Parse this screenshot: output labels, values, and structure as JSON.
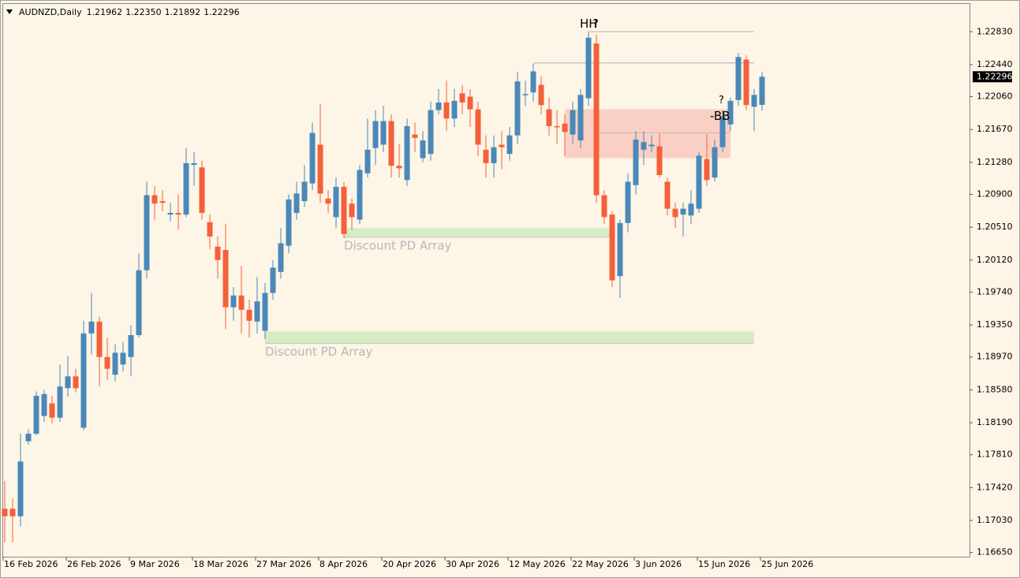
{
  "header": {
    "symbol": "AUDNZD,Daily",
    "ohlc": [
      "1.21962",
      "1.22350",
      "1.21892",
      "1.22296"
    ]
  },
  "chart_data": {
    "type": "candlestick",
    "up_color": "#4a88b8",
    "down_color": "#f4603a",
    "categories": [
      "16 Feb 2026",
      null,
      null,
      null,
      null,
      null,
      null,
      null,
      "26 Feb 2026",
      null,
      null,
      null,
      null,
      null,
      null,
      null,
      "9 Mar 2026",
      null,
      null,
      null,
      null,
      null,
      null,
      null,
      "18 Mar 2026",
      null,
      null,
      null,
      null,
      null,
      null,
      null,
      "27 Mar 2026",
      null,
      null,
      null,
      null,
      null,
      null,
      null,
      "8 Apr 2026",
      null,
      null,
      null,
      null,
      null,
      null,
      null,
      "20 Apr 2026",
      null,
      null,
      null,
      null,
      null,
      null,
      null,
      "30 Apr 2026",
      null,
      null,
      null,
      null,
      null,
      null,
      null,
      "12 May 2026",
      null,
      null,
      null,
      null,
      null,
      null,
      null,
      "22 May 2026",
      null,
      null,
      null,
      null,
      null,
      null,
      null,
      "3 Jun 2026",
      null,
      null,
      null,
      null,
      null,
      null,
      null,
      "15 Jun 2026",
      null,
      null,
      null,
      null,
      null,
      null,
      null,
      "25 Jun 2026"
    ],
    "series": [
      {
        "open": [
          1.1717,
          1.1717,
          1.1708,
          1.1797,
          1.1806,
          1.1827,
          1.1842,
          1.1825,
          1.186,
          1.1874,
          1.1813,
          1.1925,
          1.1939,
          1.1897,
          1.1876,
          1.1888,
          1.1897,
          1.1923,
          1.2,
          1.2089,
          1.2082,
          1.2066,
          1.2068,
          1.2066,
          1.2125,
          1.2122,
          1.2057,
          1.2028,
          1.2024,
          1.1956,
          1.197,
          1.1953,
          1.1939,
          1.1928,
          1.1973,
          1.1998,
          1.2029,
          1.2068,
          1.2082,
          1.2103,
          1.2149,
          1.2085,
          1.2063,
          1.2099,
          1.2079,
          1.206,
          1.2115,
          1.2145,
          1.2149,
          1.2177,
          1.2124,
          1.2107,
          1.2161,
          1.2133,
          1.2138,
          1.219,
          1.2199,
          1.218,
          1.221,
          1.2206,
          1.2191,
          1.2143,
          1.2127,
          1.2149,
          1.2138,
          1.216,
          1.2208,
          1.2211,
          1.222,
          1.2191,
          1.2171,
          1.2174,
          1.2161,
          1.2154,
          1.2204,
          1.2269,
          1.2089,
          1.2066,
          1.1993,
          1.2056,
          1.2101,
          1.2143,
          1.2147,
          1.2147,
          1.2105,
          1.2073,
          1.2066,
          1.2065,
          1.2073,
          1.2132,
          1.211,
          1.2146,
          1.2173,
          1.2202,
          1.225,
          1.2194,
          1.21962
        ],
        "high": [
          1.175,
          1.1729,
          1.1806,
          1.1811,
          1.1856,
          1.1858,
          1.1851,
          1.1888,
          1.1898,
          1.1883,
          1.194,
          1.1973,
          1.1945,
          1.192,
          1.1912,
          1.1915,
          1.1935,
          1.202,
          1.2105,
          1.21,
          1.2095,
          1.208,
          1.209,
          1.2145,
          1.214,
          1.213,
          1.2066,
          1.204,
          1.2055,
          1.198,
          1.2005,
          1.1965,
          1.1992,
          1.1985,
          1.2012,
          1.205,
          1.209,
          1.2105,
          1.2125,
          1.2175,
          1.2197,
          1.2095,
          1.211,
          1.2105,
          1.2085,
          1.2125,
          1.218,
          1.219,
          1.2195,
          1.2185,
          1.215,
          1.218,
          1.2175,
          1.2165,
          1.22,
          1.2215,
          1.2225,
          1.2215,
          1.222,
          1.2215,
          1.22,
          1.216,
          1.216,
          1.2165,
          1.217,
          1.2235,
          1.2225,
          1.2245,
          1.223,
          1.2205,
          1.219,
          1.2185,
          1.22,
          1.2215,
          1.2283,
          1.228,
          1.2095,
          1.207,
          1.206,
          1.2115,
          1.2165,
          1.2165,
          1.216,
          1.2162,
          1.211,
          1.208,
          1.208,
          1.2095,
          1.214,
          1.2162,
          1.2155,
          1.219,
          1.2205,
          1.2258,
          1.2255,
          1.2215,
          1.2235
        ],
        "low": [
          1.1677,
          1.1677,
          1.1696,
          1.1793,
          1.1804,
          1.182,
          1.1818,
          1.182,
          1.185,
          1.1855,
          1.181,
          1.19,
          1.1862,
          1.187,
          1.1868,
          1.188,
          1.1874,
          1.192,
          1.199,
          1.206,
          1.207,
          1.2058,
          1.2048,
          1.2063,
          1.21,
          1.206,
          1.2025,
          1.199,
          1.193,
          1.194,
          1.1925,
          1.192,
          1.1925,
          1.1918,
          1.1965,
          1.199,
          1.202,
          1.206,
          1.2075,
          1.2095,
          1.208,
          1.2068,
          1.205,
          1.2038,
          1.2048,
          1.2055,
          1.211,
          1.2125,
          1.214,
          1.211,
          1.211,
          1.21,
          1.214,
          1.2128,
          1.213,
          1.2185,
          1.2165,
          1.217,
          1.2185,
          1.217,
          1.2135,
          1.211,
          1.211,
          1.212,
          1.213,
          1.215,
          1.2195,
          1.22,
          1.2185,
          1.216,
          1.215,
          1.2135,
          1.215,
          1.2145,
          1.2195,
          1.208,
          1.2055,
          1.198,
          1.1967,
          1.2045,
          1.209,
          1.2125,
          1.214,
          1.211,
          1.2065,
          1.205,
          1.204,
          1.2055,
          1.2068,
          1.21,
          1.2105,
          1.214,
          1.2165,
          1.2195,
          1.219,
          1.2165,
          1.21892
        ],
        "close": [
          1.1708,
          1.1708,
          1.1773,
          1.1806,
          1.1851,
          1.1853,
          1.1825,
          1.1862,
          1.1874,
          1.186,
          1.1925,
          1.1939,
          1.1897,
          1.1883,
          1.1902,
          1.1902,
          1.1923,
          1.2,
          1.2089,
          1.2079,
          1.208,
          1.2068,
          1.2066,
          1.2127,
          1.2127,
          1.2068,
          1.204,
          1.2012,
          1.1956,
          1.197,
          1.1953,
          1.194,
          1.1963,
          1.1973,
          1.2003,
          1.2032,
          1.2084,
          1.2091,
          1.2105,
          1.2163,
          1.2091,
          1.2079,
          1.2099,
          1.2043,
          1.2063,
          1.2119,
          1.2143,
          1.2177,
          1.2177,
          1.2124,
          1.2121,
          1.2171,
          1.2157,
          1.2154,
          1.219,
          1.2199,
          1.218,
          1.2201,
          1.2199,
          1.2191,
          1.2149,
          1.2127,
          1.2146,
          1.2146,
          1.216,
          1.2224,
          1.2209,
          1.2236,
          1.2196,
          1.2171,
          1.217,
          1.2164,
          1.219,
          1.2208,
          1.2276,
          1.2089,
          1.2063,
          1.1988,
          1.2056,
          1.2105,
          1.2155,
          1.2152,
          1.2149,
          1.2113,
          1.2073,
          1.2063,
          1.2073,
          1.2079,
          1.2136,
          1.2107,
          1.2146,
          1.2182,
          1.2201,
          1.2253,
          1.2196,
          1.2208,
          1.22296
        ]
      }
    ],
    "ylim": [
      1.166,
      1.2316
    ],
    "yticks": [
      {
        "value": 1.2283,
        "label": "1.22830"
      },
      {
        "value": 1.2244,
        "label": "1.22440"
      },
      {
        "value": 1.2206,
        "label": "1.22060"
      },
      {
        "value": 1.2167,
        "label": "1.21670"
      },
      {
        "value": 1.2128,
        "label": "1.21280"
      },
      {
        "value": 1.209,
        "label": "1.20900"
      },
      {
        "value": 1.2051,
        "label": "1.20510"
      },
      {
        "value": 1.2012,
        "label": "1.20120"
      },
      {
        "value": 1.1974,
        "label": "1.19740"
      },
      {
        "value": 1.1935,
        "label": "1.19350"
      },
      {
        "value": 1.1897,
        "label": "1.18970"
      },
      {
        "value": 1.1858,
        "label": "1.18580"
      },
      {
        "value": 1.1819,
        "label": "1.18190"
      },
      {
        "value": 1.1781,
        "label": "1.17810"
      },
      {
        "value": 1.1742,
        "label": "1.17420"
      },
      {
        "value": 1.1703,
        "label": "1.17030"
      },
      {
        "value": 1.1665,
        "label": "1.16650"
      }
    ],
    "current_price": {
      "value": 1.22296,
      "label": "1.22296"
    },
    "levels": [
      {
        "value": 1.2283,
        "color": "#c8c8c8"
      },
      {
        "value": 1.2246,
        "color": "#c8c8c8"
      }
    ],
    "zones": [
      {
        "low": 1.2133,
        "high": 1.2191,
        "mid": 1.2163,
        "color": "#fbd0c4"
      },
      {
        "low": 1.2039,
        "high": 1.205,
        "label": "Discount PD Array",
        "color": "#d5ecc4"
      },
      {
        "low": 1.1913,
        "high": 1.1927,
        "label": "Discount PD Array",
        "color": "#d5ecc4"
      }
    ],
    "markers": [
      {
        "text": "HH",
        "color": "#c8c8c8"
      },
      {
        "text": "?",
        "color": "#e0261b"
      },
      {
        "text": "?",
        "color": "#e0261b"
      },
      {
        "text": "-BB",
        "color": "#e0261b"
      }
    ]
  }
}
